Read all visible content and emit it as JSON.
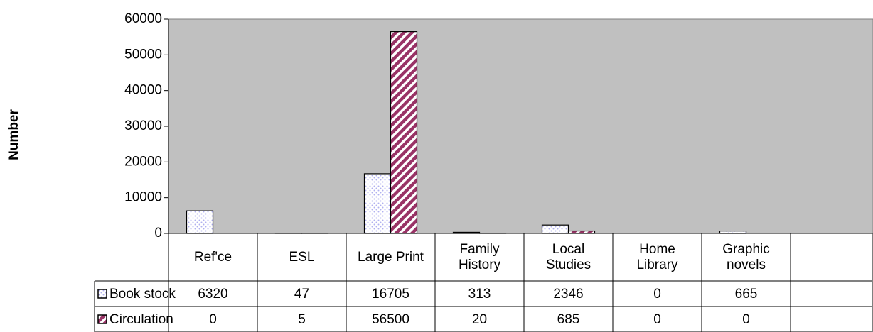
{
  "chart_data": {
    "type": "bar",
    "y_label": "Number",
    "categories": [
      "Ref'ce",
      "ESL",
      "Large Print",
      "Family History",
      "Local Studies",
      "Home Library",
      "Graphic novels",
      null
    ],
    "series": [
      {
        "name": "Book stock",
        "color": "#ccccff",
        "values": [
          6320,
          47,
          16705,
          313,
          2346,
          0,
          665,
          null
        ]
      },
      {
        "name": "Circulation",
        "color": "#993366",
        "values": [
          0,
          5,
          56500,
          20,
          685,
          0,
          0,
          null
        ]
      }
    ],
    "ylim": [
      0,
      60000
    ],
    "yticks": [
      0,
      10000,
      20000,
      30000,
      40000,
      50000,
      60000
    ],
    "grid": false,
    "plot_background": "#c0c0c0",
    "data_table": true
  }
}
